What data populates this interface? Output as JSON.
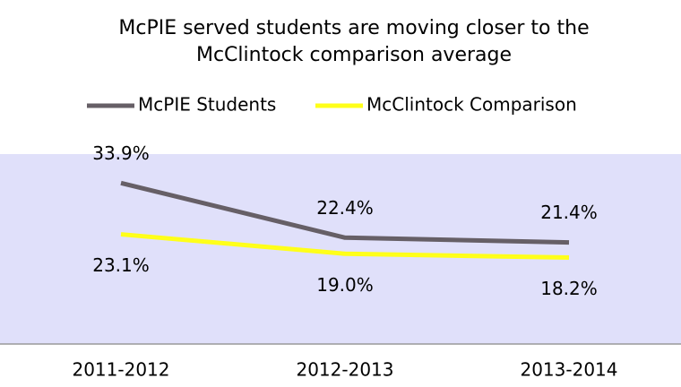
{
  "chart_data": {
    "type": "line",
    "title": [
      "McPIE served students are moving closer to the",
      "McClintock comparison average"
    ],
    "categories": [
      "2011-2012",
      "2012-2013",
      "2013-2014"
    ],
    "series": [
      {
        "name": "McPIE Students",
        "color": "#665f66",
        "values": [
          33.9,
          22.4,
          21.4
        ],
        "value_labels": [
          "33.9%",
          "22.4%",
          "21.4%"
        ]
      },
      {
        "name": "McClintock Comparison",
        "color": "#ffff19",
        "values": [
          23.1,
          19.0,
          18.2
        ],
        "value_labels": [
          "23.1%",
          "19.0%",
          "18.2%"
        ]
      }
    ],
    "ylim": [
      0,
      40
    ],
    "background": "#e0e0fa"
  }
}
